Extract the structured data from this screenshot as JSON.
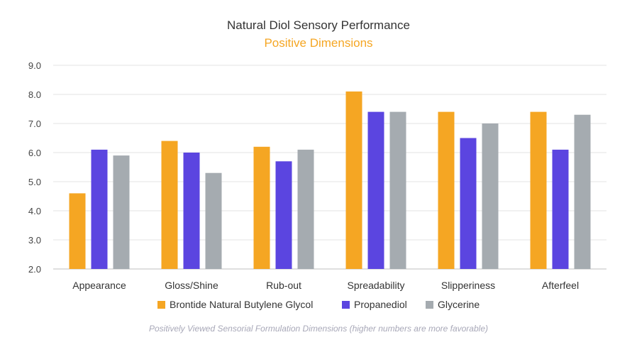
{
  "chart_data": {
    "type": "bar",
    "title": "Natural Diol Sensory Performance",
    "subtitle": "Positive Dimensions",
    "footnote": "Positively Viewed Sensorial Formulation Dimensions (higher numbers are more favorable)",
    "categories": [
      "Appearance",
      "Gloss/Shine",
      "Rub-out",
      "Spreadability",
      "Slipperiness",
      "Afterfeel"
    ],
    "series": [
      {
        "name": "Brontide Natural Butylene Glycol",
        "color": "#f5a623",
        "values": [
          4.6,
          6.4,
          6.2,
          8.1,
          7.4,
          7.4
        ]
      },
      {
        "name": "Propanediol",
        "color": "#5b45e0",
        "values": [
          6.1,
          6.0,
          5.7,
          7.4,
          6.5,
          6.1
        ]
      },
      {
        "name": "Glycerine",
        "color": "#a5abb0",
        "values": [
          5.9,
          5.3,
          6.1,
          7.4,
          7.0,
          7.3
        ]
      }
    ],
    "yticks": [
      "2.0",
      "3.0",
      "4.0",
      "5.0",
      "6.0",
      "7.0",
      "8.0",
      "9.0"
    ],
    "ylim": [
      2,
      9
    ],
    "xlabel": "",
    "ylabel": "",
    "grid": true,
    "legend_position": "bottom",
    "subtitle_color": "#f5a623"
  }
}
